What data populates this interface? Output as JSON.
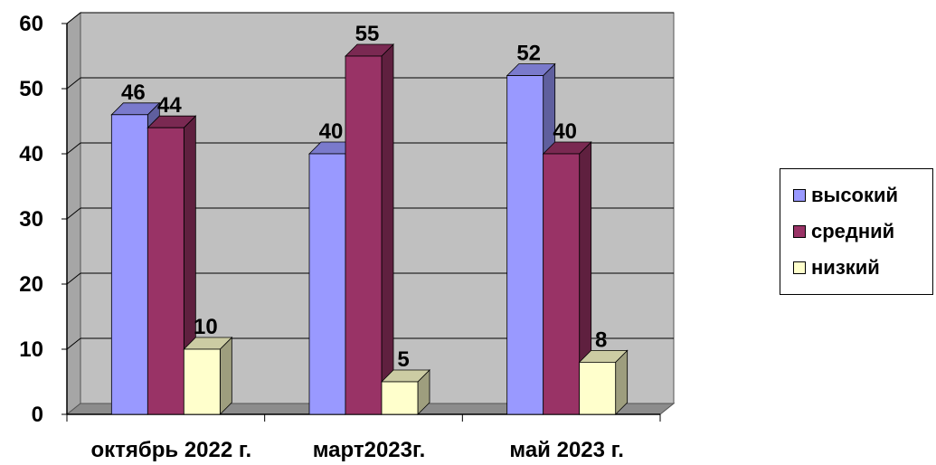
{
  "chart_data": {
    "type": "bar",
    "categories": [
      "октябрь 2022 г.",
      "март2023г.",
      "май 2023 г."
    ],
    "series": [
      {
        "name": "высокий",
        "values": [
          46,
          40,
          52
        ],
        "color": "#9999ff"
      },
      {
        "name": "средний",
        "values": [
          44,
          55,
          40
        ],
        "color": "#993366"
      },
      {
        "name": "низкий",
        "values": [
          10,
          5,
          8
        ],
        "color": "#ffffcc"
      }
    ],
    "ylim": [
      0,
      60
    ],
    "yticks": [
      0,
      10,
      20,
      30,
      40,
      50,
      60
    ],
    "grid": true,
    "legend_position": "right",
    "plot_background": "#c0c0c0",
    "style": "3d-clustered-column"
  },
  "legend": {
    "items": [
      {
        "label": "высокий",
        "color": "#9999ff"
      },
      {
        "label": "средний",
        "color": "#993366"
      },
      {
        "label": "низкий",
        "color": "#ffffcc"
      }
    ]
  }
}
